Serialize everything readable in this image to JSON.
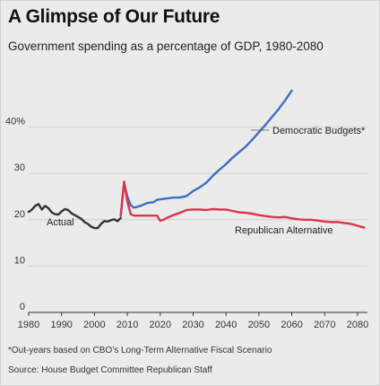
{
  "header": {
    "title": "A Glimpse of Our Future",
    "subtitle": "Government spending as a percentage of GDP, 1980-2080"
  },
  "footer": {
    "note": "*Out-years based on CBO’s Long-Term Alternative Fiscal Scenario",
    "source": "Source: House Budget Committee Republican Staff"
  },
  "colors": {
    "actual": "#333333",
    "democratic": "#3a6fc4",
    "republican": "#e0324a",
    "grid": "#d0d0d0",
    "background": "#ebebeb"
  },
  "chart_data": {
    "type": "line",
    "title": "A Glimpse of Our Future",
    "subtitle": "Government spending as a percentage of GDP, 1980-2080",
    "xlim": [
      1980,
      2083
    ],
    "ylim": [
      0,
      50
    ],
    "x_ticks": [
      "1980",
      "1990",
      "2000",
      "2010",
      "2020",
      "2030",
      "2040",
      "2050",
      "2060",
      "2070",
      "2080"
    ],
    "y_ticks": [
      {
        "value": 0,
        "label": "0"
      },
      {
        "value": 10,
        "label": "10"
      },
      {
        "value": 20,
        "label": "20"
      },
      {
        "value": 30,
        "label": "30"
      },
      {
        "value": 40,
        "label": "40%"
      }
    ],
    "grid": "horizontal",
    "series": [
      {
        "name": "Actual",
        "color_key": "actual",
        "x": [
          1980,
          1981,
          1982,
          1983,
          1984,
          1985,
          1986,
          1987,
          1988,
          1989,
          1990,
          1991,
          1992,
          1993,
          1994,
          1995,
          1996,
          1997,
          1998,
          1999,
          2000,
          2001,
          2002,
          2003,
          2004,
          2005,
          2006,
          2007,
          2008
        ],
        "y": [
          21.7,
          22.2,
          23.0,
          23.4,
          22.2,
          23.0,
          22.5,
          21.6,
          21.2,
          21.1,
          21.8,
          22.3,
          22.1,
          21.4,
          21.0,
          20.6,
          20.2,
          19.5,
          19.1,
          18.5,
          18.2,
          18.2,
          19.1,
          19.7,
          19.6,
          19.9,
          20.1,
          19.7,
          20.4
        ]
      },
      {
        "name": "Democratic Budgets*",
        "color_key": "democratic",
        "x": [
          2008,
          2009,
          2010,
          2011,
          2012,
          2013,
          2014,
          2015,
          2016,
          2017,
          2018,
          2019,
          2020,
          2022,
          2024,
          2026,
          2028,
          2030,
          2032,
          2034,
          2036,
          2038,
          2040,
          2042,
          2044,
          2046,
          2048,
          2050,
          2052,
          2054,
          2056,
          2058,
          2060
        ],
        "y": [
          20.9,
          28.0,
          25.0,
          23.2,
          22.6,
          22.8,
          23.0,
          23.3,
          23.6,
          23.7,
          23.8,
          24.3,
          24.4,
          24.6,
          24.8,
          24.8,
          25.1,
          26.2,
          27.0,
          28.0,
          29.5,
          30.8,
          32.0,
          33.4,
          34.6,
          35.8,
          37.3,
          38.9,
          40.5,
          42.2,
          43.9,
          45.8,
          47.9
        ]
      },
      {
        "name": "Republican Alternative",
        "color_key": "republican",
        "x": [
          2008,
          2009,
          2010,
          2011,
          2012,
          2014,
          2016,
          2018,
          2019,
          2020,
          2021,
          2022,
          2024,
          2026,
          2028,
          2030,
          2032,
          2034,
          2036,
          2038,
          2040,
          2042,
          2044,
          2046,
          2048,
          2050,
          2052,
          2054,
          2056,
          2058,
          2060,
          2062,
          2064,
          2066,
          2068,
          2070,
          2072,
          2074,
          2076,
          2078,
          2080,
          2082
        ],
        "y": [
          20.9,
          28.2,
          24.0,
          21.2,
          20.9,
          20.9,
          20.9,
          20.9,
          20.9,
          19.8,
          20.0,
          20.4,
          21.0,
          21.5,
          22.1,
          22.2,
          22.2,
          22.1,
          22.3,
          22.2,
          22.2,
          21.9,
          21.6,
          21.5,
          21.3,
          21.0,
          20.8,
          20.6,
          20.5,
          20.6,
          20.3,
          20.1,
          20.0,
          20.0,
          19.8,
          19.6,
          19.5,
          19.5,
          19.3,
          19.1,
          18.7,
          18.3
        ]
      }
    ],
    "annotations": [
      "Actual",
      "Democratic Budgets*",
      "Republican Alternative"
    ]
  }
}
